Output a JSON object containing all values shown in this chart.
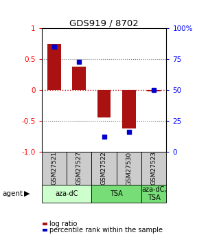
{
  "title": "GDS919 / 8702",
  "samples": [
    "GSM27521",
    "GSM27527",
    "GSM27522",
    "GSM27530",
    "GSM27523"
  ],
  "log_ratio": [
    0.75,
    0.38,
    -0.45,
    -0.62,
    -0.02
  ],
  "percentile_rank": [
    85,
    73,
    12,
    16,
    50
  ],
  "agents": [
    {
      "label": "aza-dC",
      "start": 0,
      "end": 2,
      "color": "#ccffcc"
    },
    {
      "label": "TSA",
      "start": 2,
      "end": 4,
      "color": "#77dd77"
    },
    {
      "label": "aza-dC,\nTSA",
      "start": 4,
      "end": 5,
      "color": "#77dd77"
    }
  ],
  "bar_color": "#aa1111",
  "dot_color": "#0000cc",
  "ylim": [
    -1.0,
    1.0
  ],
  "y_ticks_left": [
    -1.0,
    -0.5,
    0.0,
    0.5,
    1.0
  ],
  "y_ticks_right": [
    0,
    25,
    50,
    75,
    100
  ],
  "zero_line_color": "#cc0000",
  "dotted_color": "#666666",
  "agent_label": "agent",
  "legend_log_ratio": "log ratio",
  "legend_percentile": "percentile rank within the sample",
  "background_color": "#ffffff",
  "plot_bg": "#ffffff",
  "grey_bg": "#cccccc"
}
